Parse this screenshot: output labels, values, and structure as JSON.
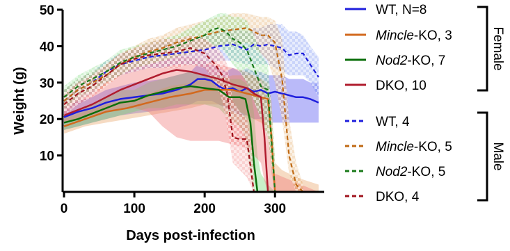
{
  "chart_data": {
    "type": "line",
    "xlabel": "Days post-infection",
    "ylabel": "Weight (g)",
    "xlim": [
      0,
      370
    ],
    "ylim": [
      0,
      50
    ],
    "x_ticks": [
      "0",
      "100",
      "200",
      "300"
    ],
    "y_ticks": [
      "10",
      "20",
      "30",
      "40",
      "50"
    ],
    "grid": false,
    "legend_position": "right",
    "groups": [
      {
        "label": "Female",
        "members": [
          0,
          1,
          2,
          3
        ]
      },
      {
        "label": "Male",
        "members": [
          4,
          5,
          6,
          7
        ]
      }
    ],
    "series": [
      {
        "legend": {
          "segments": [
            {
              "text": "WT, N=8",
              "italic": false
            }
          ]
        },
        "color": "#1f1fdd",
        "dash": false,
        "x": [
          0,
          20,
          40,
          60,
          80,
          100,
          120,
          140,
          160,
          180,
          190,
          200,
          210,
          220,
          230,
          240,
          250,
          260,
          270,
          280,
          290,
          300,
          310,
          320,
          330,
          340,
          350,
          362
        ],
        "y": [
          20.5,
          22,
          23,
          24.5,
          25.5,
          26,
          26.5,
          27,
          28,
          29.5,
          31,
          31,
          30.5,
          29,
          28,
          28.5,
          27.5,
          28.5,
          27.5,
          28,
          27,
          27.5,
          27,
          26.5,
          26,
          26,
          25.5,
          24.5
        ],
        "band_lower": [
          17,
          18,
          19,
          20,
          21,
          21.5,
          22,
          22.5,
          23,
          24,
          25,
          25,
          25,
          24,
          23,
          22,
          21,
          21,
          20,
          20,
          19,
          19,
          19,
          19,
          19,
          19,
          19,
          19
        ],
        "band_upper": [
          23,
          25,
          26,
          28,
          29,
          30,
          30.5,
          31,
          32,
          33,
          35,
          35,
          35,
          34,
          33,
          34,
          33,
          34,
          33,
          33,
          32,
          32,
          32,
          31,
          31,
          31,
          30,
          30
        ],
        "band_color": "#4a4af0",
        "band_pattern": false
      },
      {
        "legend": {
          "segments": [
            {
              "text": "Mincle",
              "italic": true
            },
            {
              "text": "-KO, 3",
              "italic": false
            }
          ]
        },
        "color": "#d2691e",
        "dash": false,
        "x": [
          0,
          30,
          60,
          90,
          120,
          150,
          180,
          200,
          220,
          240,
          250,
          260,
          270,
          280,
          290,
          295,
          300,
          310,
          330,
          362
        ],
        "y": [
          18,
          20,
          22,
          23,
          24.5,
          26,
          27,
          28,
          28,
          28,
          27.5,
          27,
          26.5,
          26,
          25.5,
          15,
          0,
          0,
          0,
          0
        ],
        "band_lower": [
          16,
          18,
          19,
          20,
          21,
          22,
          23,
          24,
          24,
          23,
          22,
          21,
          20,
          19,
          17,
          5,
          0,
          0,
          0,
          0
        ],
        "band_upper": [
          20,
          22,
          24,
          25,
          27,
          29,
          30,
          31,
          31,
          32,
          32,
          32,
          32,
          31,
          30,
          25,
          8,
          6,
          4,
          2
        ],
        "band_color": "#e8a060",
        "band_pattern": false
      },
      {
        "legend": {
          "segments": [
            {
              "text": "Nod2",
              "italic": true
            },
            {
              "text": "-KO, 7",
              "italic": false
            }
          ]
        },
        "color": "#0a6e0a",
        "dash": false,
        "x": [
          0,
          20,
          40,
          60,
          80,
          100,
          120,
          140,
          160,
          180,
          200,
          220,
          235,
          250,
          258,
          265,
          270,
          275,
          280,
          290,
          300,
          362
        ],
        "y": [
          19,
          20,
          21.5,
          23,
          24.5,
          25,
          26.5,
          27.5,
          28.5,
          29,
          28.5,
          28,
          26,
          26,
          25.5,
          19,
          8,
          0,
          0,
          0,
          0,
          0
        ],
        "band_lower": [
          17,
          18,
          19,
          20,
          21,
          22,
          23,
          23,
          24,
          24,
          24,
          23,
          20,
          18,
          15,
          5,
          0,
          0,
          0,
          0,
          0,
          0
        ],
        "band_upper": [
          21,
          22,
          24,
          26,
          28,
          28,
          30,
          31,
          32,
          33,
          32,
          32,
          31,
          31,
          30,
          28,
          22,
          10,
          5,
          2,
          0,
          0
        ],
        "band_color": "#70d870",
        "band_pattern": false
      },
      {
        "legend": {
          "segments": [
            {
              "text": "DKO, 10",
              "italic": false
            }
          ]
        },
        "color": "#b01c2e",
        "dash": false,
        "x": [
          0,
          20,
          40,
          60,
          80,
          100,
          120,
          140,
          160,
          180,
          200,
          220,
          240,
          260,
          270,
          280,
          285,
          290,
          300,
          362
        ],
        "y": [
          21,
          22.5,
          24,
          26,
          28,
          29.5,
          31,
          32.5,
          33.5,
          33,
          32,
          31,
          29.5,
          28.5,
          27,
          26,
          15,
          0,
          0,
          0
        ],
        "band_lower": [
          19,
          20,
          21,
          22,
          23,
          23,
          22,
          18,
          15,
          14,
          14,
          14,
          13,
          12,
          10,
          8,
          3,
          0,
          0,
          0
        ],
        "band_upper": [
          23,
          25,
          27,
          30,
          32,
          34,
          35,
          36,
          37,
          37,
          36,
          35,
          34,
          33,
          32,
          31,
          28,
          18,
          5,
          0
        ],
        "band_color": "#f07070",
        "band_pattern": false
      },
      {
        "legend": {
          "segments": [
            {
              "text": "WT, 4",
              "italic": false
            }
          ]
        },
        "color": "#1f1fdd",
        "dash": true,
        "x": [
          0,
          20,
          40,
          60,
          80,
          100,
          120,
          140,
          160,
          180,
          200,
          220,
          240,
          260,
          270,
          280,
          290,
          300,
          310,
          320,
          330,
          340,
          350,
          362
        ],
        "y": [
          25,
          28,
          30,
          33,
          35,
          36,
          37,
          37.5,
          38,
          38.5,
          39,
          40,
          40.5,
          39,
          40.5,
          40,
          40.5,
          40,
          39.5,
          37.5,
          38,
          38,
          35,
          31.5
        ],
        "band_lower": [
          22,
          25,
          27,
          30,
          32,
          33,
          34,
          34,
          35,
          35,
          35,
          36,
          36,
          35,
          35,
          35,
          35,
          34,
          33,
          32,
          32,
          32,
          30,
          26
        ],
        "band_upper": [
          28,
          31,
          33,
          36,
          38,
          39,
          40,
          41,
          41,
          42,
          43,
          44,
          45,
          44,
          45,
          45,
          46,
          46,
          46,
          44,
          44,
          43,
          40,
          37
        ],
        "band_color": "#5a78f0",
        "band_pattern": true
      },
      {
        "legend": {
          "segments": [
            {
              "text": "Mincle",
              "italic": true
            },
            {
              "text": "-KO, 5",
              "italic": false
            }
          ]
        },
        "color": "#c06a14",
        "dash": true,
        "x": [
          0,
          20,
          40,
          60,
          80,
          100,
          120,
          140,
          160,
          180,
          200,
          220,
          240,
          260,
          280,
          290,
          300,
          310,
          320,
          330,
          340
        ],
        "y": [
          25,
          28,
          30,
          32,
          35,
          37,
          38.5,
          39.5,
          41,
          42,
          43,
          44,
          44.5,
          45,
          43,
          43,
          41,
          31,
          10,
          2,
          0
        ],
        "band_lower": [
          22,
          25,
          27,
          29,
          32,
          34,
          35,
          36,
          37,
          38,
          39,
          40,
          40,
          41,
          38,
          36,
          30,
          20,
          5,
          0,
          0
        ],
        "band_upper": [
          28,
          31,
          33,
          35,
          38,
          40,
          42,
          43,
          45,
          46,
          47,
          48,
          49,
          49,
          48,
          48,
          47,
          42,
          20,
          8,
          2
        ],
        "band_color": "#e0a050",
        "band_pattern": true
      },
      {
        "legend": {
          "segments": [
            {
              "text": "Nod2",
              "italic": true
            },
            {
              "text": "-KO, 5",
              "italic": false
            }
          ]
        },
        "color": "#1a7a1a",
        "dash": true,
        "x": [
          0,
          20,
          40,
          60,
          80,
          100,
          120,
          140,
          160,
          180,
          200,
          210,
          220,
          230,
          240,
          250,
          260,
          270,
          280,
          290,
          300
        ],
        "y": [
          26,
          29,
          31,
          33,
          35.5,
          37,
          38,
          39,
          40,
          41.5,
          43,
          44.5,
          45,
          44,
          42,
          41,
          39,
          34,
          29,
          28,
          0
        ],
        "band_lower": [
          23,
          26,
          28,
          30,
          32,
          34,
          35,
          36,
          37,
          38,
          39,
          40,
          40,
          38,
          35,
          33,
          30,
          25,
          20,
          15,
          0
        ],
        "band_upper": [
          29,
          32,
          34,
          36,
          39,
          40,
          41,
          42,
          43,
          45,
          47,
          48,
          49,
          49,
          48,
          48,
          47,
          43,
          38,
          35,
          10
        ],
        "band_color": "#70d870",
        "band_pattern": true
      },
      {
        "legend": {
          "segments": [
            {
              "text": "DKO, 4",
              "italic": false
            }
          ]
        },
        "color": "#a0141e",
        "dash": true,
        "x": [
          0,
          20,
          40,
          60,
          80,
          100,
          120,
          140,
          160,
          180,
          200,
          215,
          225,
          232,
          240,
          250,
          260,
          270
        ],
        "y": [
          24,
          27,
          29,
          32,
          35,
          36.5,
          37.5,
          38,
          38.5,
          39.5,
          38,
          35,
          32,
          27,
          15,
          14.5,
          14.5,
          0
        ],
        "band_lower": [
          21,
          24,
          26,
          29,
          32,
          33,
          34,
          34,
          34,
          35,
          34,
          30,
          25,
          18,
          8,
          6,
          4,
          0
        ],
        "band_upper": [
          27,
          30,
          32,
          35,
          38,
          39.5,
          41,
          42,
          42,
          43,
          42,
          40,
          38,
          35,
          25,
          22,
          20,
          10
        ],
        "band_color": "#f07070",
        "band_pattern": true
      }
    ]
  },
  "legend_groups": {
    "female": "Female",
    "male": "Male"
  }
}
